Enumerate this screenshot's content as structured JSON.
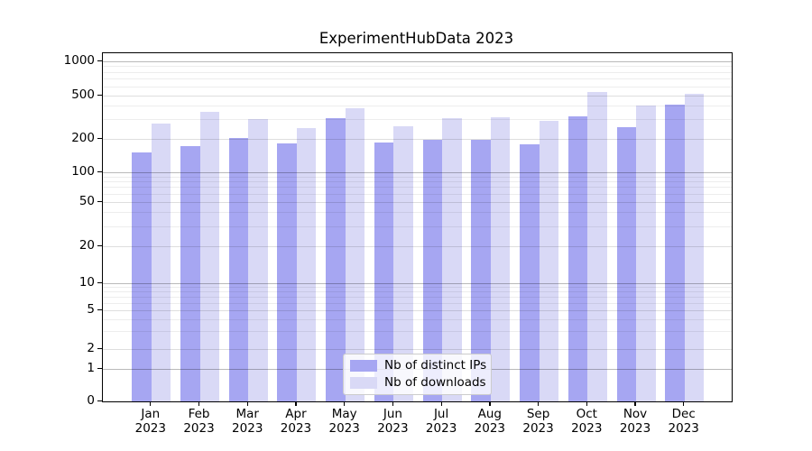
{
  "title": "ExperimentHubData 2023",
  "chart_data": {
    "type": "bar",
    "title": "ExperimentHubData 2023",
    "categories": [
      "Jan",
      "Feb",
      "Mar",
      "Apr",
      "May",
      "Jun",
      "Jul",
      "Aug",
      "Sep",
      "Oct",
      "Nov",
      "Dec"
    ],
    "x_tick_year": "2023",
    "series": [
      {
        "name": "Nb of distinct IPs",
        "color": "#a6a6f2",
        "values": [
          152,
          172,
          205,
          181,
          312,
          184,
          196,
          196,
          178,
          321,
          255,
          415
        ]
      },
      {
        "name": "Nb of downloads",
        "color": "#d9d9f6",
        "values": [
          275,
          352,
          303,
          250,
          383,
          263,
          309,
          315,
          294,
          539,
          409,
          522
        ]
      }
    ],
    "y_scale": "symlog",
    "y_ticks": [
      0,
      1,
      2,
      5,
      10,
      20,
      50,
      100,
      200,
      500,
      1000
    ],
    "y_minor_ticks": [
      3,
      4,
      6,
      7,
      8,
      9,
      30,
      40,
      60,
      70,
      80,
      90,
      300,
      400,
      600,
      700,
      800,
      900
    ],
    "ylim": [
      0,
      1260
    ],
    "grid": true,
    "legend_position": "lower center",
    "colors": {
      "bar_dark": "#a6a6f2",
      "bar_light": "#d9d9f6",
      "spine": "#000000",
      "background": "#ffffff"
    }
  },
  "legend": {
    "items": [
      {
        "label": "Nb of distinct IPs"
      },
      {
        "label": "Nb of downloads"
      }
    ]
  }
}
